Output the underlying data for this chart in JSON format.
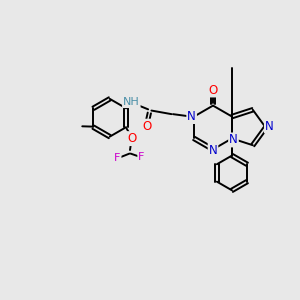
{
  "background_color": "#e8e8e8",
  "bond_color": "#000000",
  "atom_colors": {
    "N": "#0000cc",
    "O": "#ff0000",
    "F": "#cc00cc",
    "NH": "#4a8fa8",
    "C": "#000000"
  },
  "figsize": [
    3.0,
    3.0
  ],
  "dpi": 100,
  "lw": 1.4,
  "fs": 8.5
}
